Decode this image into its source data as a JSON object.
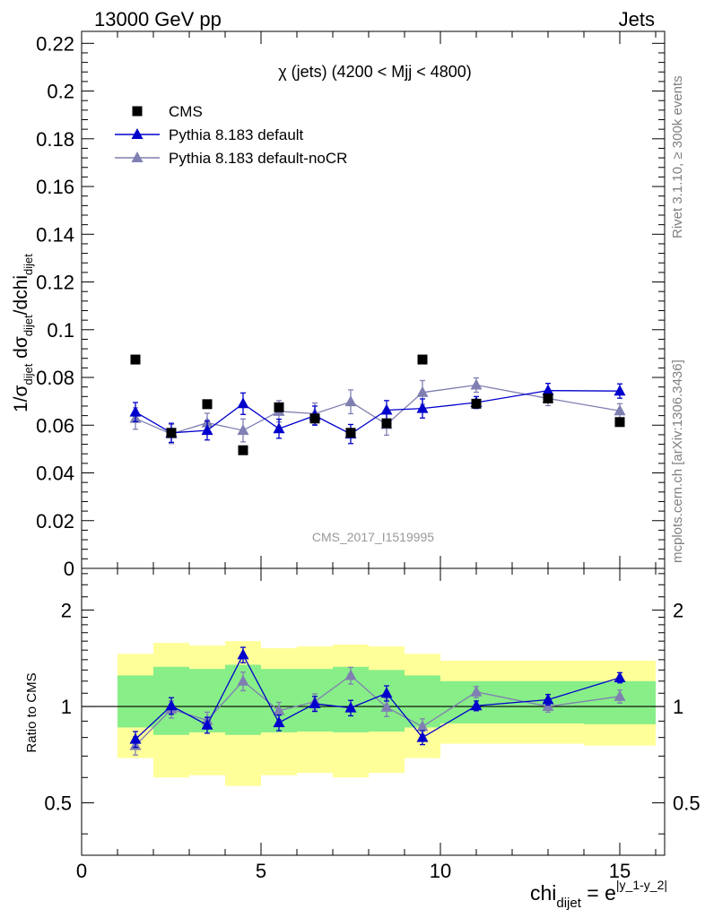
{
  "header": {
    "left": "13000 GeV pp",
    "right": "Jets"
  },
  "side": {
    "rivet": "Rivet 3.1.10, ≥ 300k events",
    "mcplots": "mcplots.cern.ch [arXiv:1306.3436]"
  },
  "chart_data": [
    {
      "type": "scatter",
      "panel": "main",
      "title": "χ (jets) (4200 < Mjj < 4800)",
      "watermark": "CMS_2017_I1519995",
      "ylabel": "1/σ_dijet dσ_dijet/dchi_dijet",
      "xlabel": "chi_dijet = e^|y_1-y_2|",
      "xlim": [
        0,
        16.25
      ],
      "ylim": [
        0,
        0.225
      ],
      "yticks": [
        0,
        0.02,
        0.04,
        0.06,
        0.08,
        0.1,
        0.12,
        0.14,
        0.16,
        0.18,
        0.2,
        0.22
      ],
      "yticklabels": [
        "0",
        "0.02",
        "0.04",
        "0.06",
        "0.08",
        "0.1",
        "0.12",
        "0.14",
        "0.16",
        "0.18",
        "0.2",
        "0.22"
      ],
      "bin_edges": [
        1,
        2,
        3,
        4,
        5,
        6,
        7,
        8,
        9,
        10,
        12,
        14,
        16
      ],
      "x": [
        1.5,
        2.5,
        3.5,
        4.5,
        5.5,
        6.5,
        7.5,
        8.5,
        9.5,
        11,
        13,
        15
      ],
      "legend": [
        {
          "label": "CMS",
          "marker": "square",
          "color": "#000000"
        },
        {
          "label": "Pythia 8.183 default",
          "marker": "triangle",
          "color": "#0000cc"
        },
        {
          "label": "Pythia 8.183 default-noCR",
          "marker": "triangle",
          "color": "#7f7fb2"
        }
      ],
      "series": [
        {
          "name": "CMS",
          "values": [
            0.0875,
            0.0568,
            0.0688,
            0.0495,
            0.0675,
            0.0628,
            0.0568,
            0.0608,
            0.0875,
            0.069,
            0.0712,
            0.0613
          ],
          "errors": [
            0,
            0,
            0,
            0,
            0,
            0,
            0,
            0,
            0,
            0,
            0,
            0
          ]
        },
        {
          "name": "Pythia 8.183 default",
          "values": [
            0.0655,
            0.0568,
            0.0578,
            0.069,
            0.0585,
            0.064,
            0.0563,
            0.0663,
            0.067,
            0.0695,
            0.0745,
            0.0743
          ],
          "errors": [
            0.004,
            0.004,
            0.004,
            0.0045,
            0.004,
            0.004,
            0.004,
            0.004,
            0.004,
            0.0025,
            0.003,
            0.003
          ]
        },
        {
          "name": "Pythia 8.183 default-noCR",
          "values": [
            0.0628,
            0.0563,
            0.061,
            0.0578,
            0.0658,
            0.0648,
            0.0698,
            0.0603,
            0.0737,
            0.0768,
            0.0712,
            0.066
          ],
          "errors": [
            0.0045,
            0.004,
            0.004,
            0.0048,
            0.0045,
            0.0045,
            0.005,
            0.0045,
            0.005,
            0.003,
            0.003,
            0.003
          ]
        }
      ]
    },
    {
      "type": "scatter",
      "panel": "ratio",
      "ylabel": "Ratio to CMS",
      "xlabel": "chi_dijet = e^|y_1-y_2|",
      "xlim": [
        0,
        16.25
      ],
      "ylim": [
        0.343,
        2.7
      ],
      "log_y": true,
      "yticks": [
        0.5,
        1,
        2
      ],
      "yticklabels": [
        "0.5",
        "1",
        "2"
      ],
      "xticks": [
        0,
        5,
        10,
        15
      ],
      "xticklabels": [
        "0",
        "5",
        "10",
        "15"
      ],
      "reference_line": 1,
      "bands": {
        "edges": [
          1,
          2,
          3,
          4,
          5,
          6,
          7,
          8,
          9,
          10,
          12,
          14,
          16
        ],
        "outer_lo": [
          0.69,
          0.6,
          0.61,
          0.565,
          0.61,
          0.62,
          0.6,
          0.62,
          0.69,
          0.765,
          0.765,
          0.755
        ],
        "outer_hi": [
          1.46,
          1.58,
          1.55,
          1.6,
          1.52,
          1.54,
          1.56,
          1.54,
          1.46,
          1.39,
          1.39,
          1.39
        ],
        "inner_lo": [
          0.86,
          0.815,
          0.83,
          0.815,
          0.83,
          0.835,
          0.83,
          0.835,
          0.86,
          0.885,
          0.885,
          0.88
        ],
        "inner_hi": [
          1.25,
          1.33,
          1.31,
          1.35,
          1.31,
          1.31,
          1.33,
          1.3,
          1.25,
          1.2,
          1.2,
          1.2
        ],
        "inner_color": "#88ee88",
        "outer_color": "#ffff99"
      },
      "series": [
        {
          "name": "Pythia 8.183 default",
          "values": [
            0.79,
            1.005,
            0.875,
            1.45,
            0.89,
            1.02,
            0.99,
            1.1,
            0.8,
            1.005,
            1.05,
            1.23
          ],
          "errors": [
            0.045,
            0.06,
            0.05,
            0.08,
            0.05,
            0.055,
            0.055,
            0.06,
            0.04,
            0.035,
            0.04,
            0.045
          ]
        },
        {
          "name": "Pythia 8.183 default-noCR",
          "values": [
            0.755,
            0.98,
            0.905,
            1.2,
            0.97,
            1.035,
            1.25,
            0.995,
            0.865,
            1.11,
            1.0,
            1.075
          ],
          "errors": [
            0.05,
            0.06,
            0.055,
            0.08,
            0.06,
            0.06,
            0.075,
            0.065,
            0.05,
            0.045,
            0.04,
            0.05
          ]
        }
      ]
    }
  ]
}
